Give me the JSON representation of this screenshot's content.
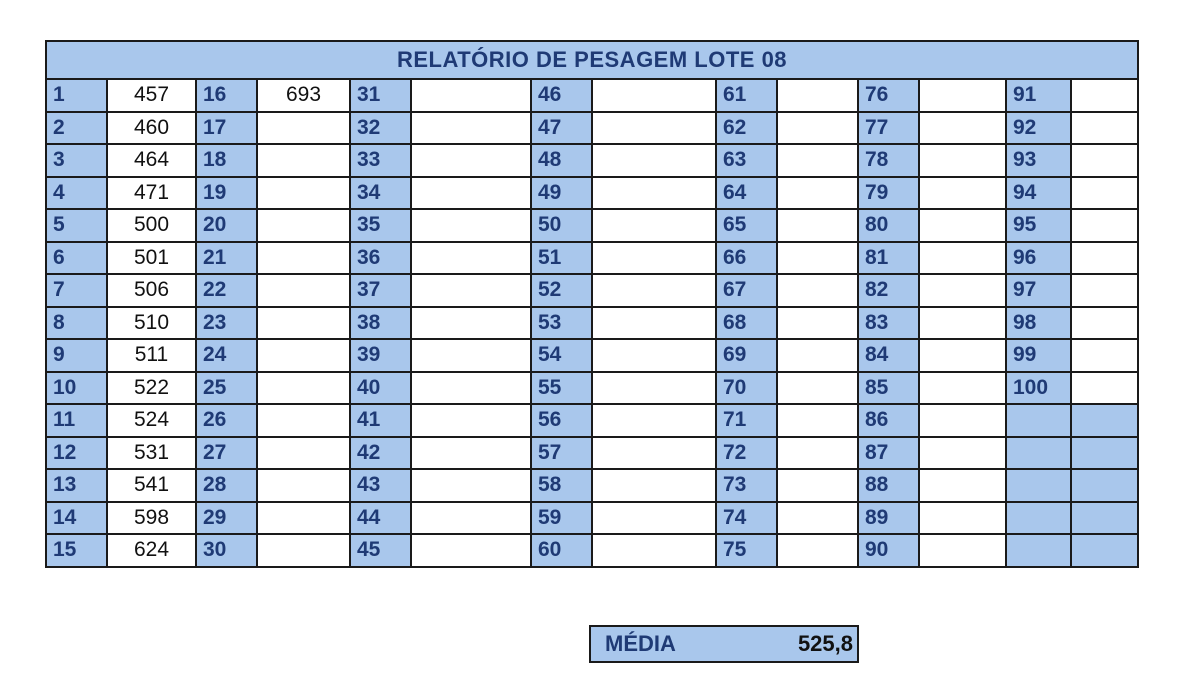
{
  "title": "RELATÓRIO DE PESAGEM LOTE 08",
  "colors": {
    "header_fill": "#a9c7ec",
    "header_text": "#1f3a75",
    "border": "#1a1a1a"
  },
  "columns": [
    {
      "numbers": [
        "1",
        "2",
        "3",
        "4",
        "5",
        "6",
        "7",
        "8",
        "9",
        "10",
        "11",
        "12",
        "13",
        "14",
        "15"
      ],
      "weights": [
        "457",
        "460",
        "464",
        "471",
        "500",
        "501",
        "506",
        "510",
        "511",
        "522",
        "524",
        "531",
        "541",
        "598",
        "624"
      ]
    },
    {
      "numbers": [
        "16",
        "17",
        "18",
        "19",
        "20",
        "21",
        "22",
        "23",
        "24",
        "25",
        "26",
        "27",
        "28",
        "29",
        "30"
      ],
      "weights": [
        "693",
        "",
        "",
        "",
        "",
        "",
        "",
        "",
        "",
        "",
        "",
        "",
        "",
        "",
        ""
      ]
    },
    {
      "numbers": [
        "31",
        "32",
        "33",
        "34",
        "35",
        "36",
        "37",
        "38",
        "39",
        "40",
        "41",
        "42",
        "43",
        "44",
        "45"
      ],
      "weights": [
        "",
        "",
        "",
        "",
        "",
        "",
        "",
        "",
        "",
        "",
        "",
        "",
        "",
        "",
        ""
      ]
    },
    {
      "numbers": [
        "46",
        "47",
        "48",
        "49",
        "50",
        "51",
        "52",
        "53",
        "54",
        "55",
        "56",
        "57",
        "58",
        "59",
        "60"
      ],
      "weights": [
        "",
        "",
        "",
        "",
        "",
        "",
        "",
        "",
        "",
        "",
        "",
        "",
        "",
        "",
        ""
      ]
    },
    {
      "numbers": [
        "61",
        "62",
        "63",
        "64",
        "65",
        "66",
        "67",
        "68",
        "69",
        "70",
        "71",
        "72",
        "73",
        "74",
        "75"
      ],
      "weights": [
        "",
        "",
        "",
        "",
        "",
        "",
        "",
        "",
        "",
        "",
        "",
        "",
        "",
        "",
        ""
      ]
    },
    {
      "numbers": [
        "76",
        "77",
        "78",
        "79",
        "80",
        "81",
        "82",
        "83",
        "84",
        "85",
        "86",
        "87",
        "88",
        "89",
        "90"
      ],
      "weights": [
        "",
        "",
        "",
        "",
        "",
        "",
        "",
        "",
        "",
        "",
        "",
        "",
        "",
        "",
        ""
      ]
    },
    {
      "numbers": [
        "91",
        "92",
        "93",
        "94",
        "95",
        "96",
        "97",
        "98",
        "99",
        "100",
        "",
        "",
        "",
        "",
        ""
      ],
      "weights": [
        "",
        "",
        "",
        "",
        "",
        "",
        "",
        "",
        "",
        "",
        "",
        "",
        "",
        "",
        ""
      ]
    }
  ],
  "media": {
    "label": "MÉDIA",
    "value": "525,8"
  }
}
